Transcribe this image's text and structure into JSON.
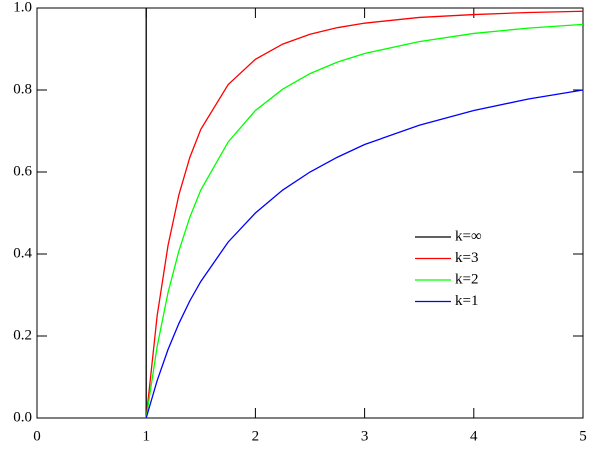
{
  "chart_data": {
    "type": "line",
    "xlim": [
      0,
      5
    ],
    "ylim": [
      0,
      1
    ],
    "xticks": [
      0,
      1,
      2,
      3,
      4,
      5
    ],
    "yticks": [
      {
        "value": 0,
        "label": "0.0"
      },
      {
        "value": 0.2,
        "label": "0.2"
      },
      {
        "value": 0.4,
        "label": "0.4"
      },
      {
        "value": 0.6,
        "label": "0.6"
      },
      {
        "value": 0.8,
        "label": "0.8"
      },
      {
        "value": 1,
        "label": "1.0"
      }
    ],
    "legend": "center right",
    "series": [
      {
        "name": "k=∞",
        "color": "#000000",
        "x": [
          1,
          1
        ],
        "values": [
          0,
          1
        ]
      },
      {
        "name": "k=3",
        "color": "#ff0000",
        "x": [
          1,
          1.1,
          1.2,
          1.3,
          1.4,
          1.5,
          1.75,
          2,
          2.25,
          2.5,
          2.75,
          3,
          3.5,
          4,
          4.5,
          5
        ],
        "values": [
          0,
          0.249,
          0.421,
          0.545,
          0.636,
          0.704,
          0.813,
          0.875,
          0.912,
          0.936,
          0.952,
          0.963,
          0.977,
          0.984,
          0.989,
          0.992
        ]
      },
      {
        "name": "k=2",
        "color": "#00ff00",
        "x": [
          1,
          1.1,
          1.2,
          1.3,
          1.4,
          1.5,
          1.75,
          2,
          2.25,
          2.5,
          2.75,
          3,
          3.5,
          4,
          4.5,
          5
        ],
        "values": [
          0,
          0.174,
          0.306,
          0.408,
          0.49,
          0.556,
          0.673,
          0.75,
          0.802,
          0.84,
          0.868,
          0.889,
          0.918,
          0.938,
          0.951,
          0.96
        ]
      },
      {
        "name": "k=1",
        "color": "#0000ff",
        "x": [
          1,
          1.1,
          1.2,
          1.3,
          1.4,
          1.5,
          1.75,
          2,
          2.25,
          2.5,
          2.75,
          3,
          3.5,
          4,
          4.5,
          5
        ],
        "values": [
          0,
          0.091,
          0.167,
          0.231,
          0.286,
          0.333,
          0.429,
          0.5,
          0.556,
          0.6,
          0.636,
          0.667,
          0.714,
          0.75,
          0.778,
          0.8
        ]
      }
    ]
  }
}
